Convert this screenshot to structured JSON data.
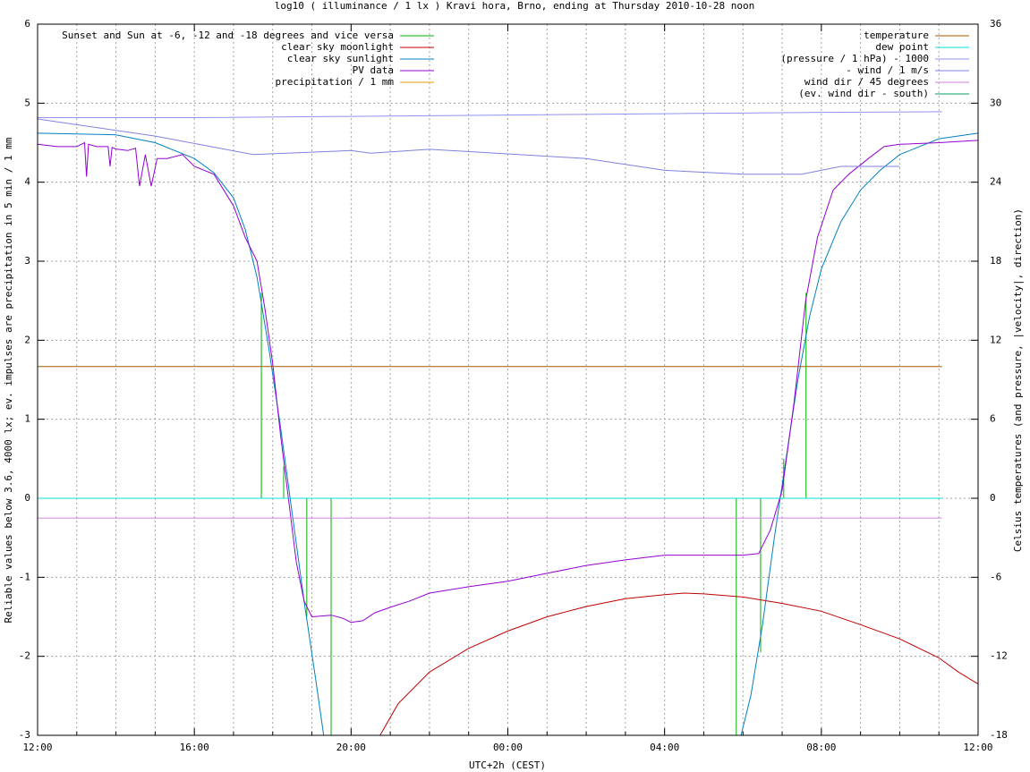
{
  "chart_data": {
    "type": "line",
    "title": "log10 ( illuminance / 1 lx ) Kravi hora, Brno, ending at Thursday 2010-10-28 noon",
    "xlabel": "UTC+2h (CEST)",
    "ylabel": "Reliable values below 3.6, 4000 lx; ev. impulses are precipitation in 5 min / 1 mm",
    "y2label": "Celsius temperatures (and pressure, |velocity|, direction)",
    "xlim": [
      0,
      24
    ],
    "xticks": [
      {
        "value": 0,
        "label": "12:00"
      },
      {
        "value": 4,
        "label": "16:00"
      },
      {
        "value": 8,
        "label": "20:00"
      },
      {
        "value": 12,
        "label": "00:00"
      },
      {
        "value": 16,
        "label": "04:00"
      },
      {
        "value": 20,
        "label": "08:00"
      },
      {
        "value": 24,
        "label": "12:00"
      }
    ],
    "xminorticks": [
      1,
      2,
      3,
      5,
      6,
      7,
      9,
      10,
      11,
      13,
      14,
      15,
      17,
      18,
      19,
      21,
      22,
      23
    ],
    "ylim": [
      -3,
      6
    ],
    "yticks": [
      -3,
      -2,
      -1,
      0,
      1,
      2,
      3,
      4,
      5,
      6
    ],
    "y2lim": [
      -18,
      36
    ],
    "y2ticks": [
      -18,
      -12,
      -6,
      0,
      6,
      12,
      18,
      24,
      30,
      36
    ],
    "grid": true,
    "legend": "top-left",
    "legend_y2": "top-right",
    "series": [
      {
        "name": "Sunset and Sun at -6, -12 and -18 degrees and vice versa",
        "color": "#00b000",
        "style": "impulses",
        "x": [
          5.71,
          6.28,
          6.87,
          7.49,
          17.83,
          18.45,
          19.04,
          19.61
        ],
        "values": [
          2.6,
          0.4,
          -1.5,
          -3,
          -3,
          -1.95,
          0.5,
          2.6
        ]
      },
      {
        "name": "clear sky moonlight",
        "color": "#c00000",
        "style": "lines",
        "x": [
          8.74,
          9.2,
          10,
          11,
          12,
          13,
          14,
          15,
          16,
          16.5,
          17,
          18,
          19,
          20,
          21,
          22,
          23,
          23.5,
          24
        ],
        "values": [
          -3,
          -2.6,
          -2.2,
          -1.9,
          -1.68,
          -1.5,
          -1.37,
          -1.27,
          -1.22,
          -1.2,
          -1.21,
          -1.25,
          -1.33,
          -1.43,
          -1.6,
          -1.78,
          -2.02,
          -2.2,
          -2.35
        ]
      },
      {
        "name": "clear sky sunlight",
        "color": "#0080c0",
        "style": "lines",
        "x": [
          0,
          2,
          3,
          4,
          4.5,
          5,
          5.3,
          5.6,
          5.9,
          6.2,
          6.5,
          6.8,
          7.1,
          7.3,
          12.5,
          17.95,
          18.2,
          18.5,
          18.8,
          19.1,
          19.4,
          19.7,
          20,
          20.5,
          21,
          21.5,
          22,
          23,
          24
        ],
        "values": [
          4.62,
          4.6,
          4.5,
          4.3,
          4.12,
          3.8,
          3.4,
          2.8,
          1.9,
          0.9,
          -0.2,
          -1.3,
          -2.3,
          -3,
          null,
          -3,
          -2.5,
          -1.6,
          -0.5,
          0.5,
          1.5,
          2.3,
          2.9,
          3.5,
          3.9,
          4.15,
          4.35,
          4.55,
          4.62
        ]
      },
      {
        "name": "PV data",
        "color": "#9400d3",
        "style": "lines",
        "x": [
          0,
          0.5,
          1,
          1.2,
          1.25,
          1.3,
          1.5,
          1.8,
          1.85,
          1.9,
          2,
          2.3,
          2.5,
          2.6,
          2.75,
          2.9,
          3.05,
          3.3,
          3.7,
          4,
          4.5,
          5,
          5.3,
          5.6,
          5.8,
          6,
          6.2,
          6.4,
          6.6,
          6.8,
          7,
          7.5,
          7.8,
          8,
          8.3,
          8.6,
          9,
          9.5,
          10,
          11,
          12,
          13,
          14,
          15,
          16,
          17,
          18,
          18.4,
          18.7,
          19,
          19.3,
          19.6,
          19.9,
          20.3,
          20.7,
          21.2,
          21.6,
          22,
          23,
          24
        ],
        "values": [
          4.48,
          4.45,
          4.45,
          4.5,
          4.07,
          4.48,
          4.45,
          4.45,
          4.2,
          4.44,
          4.42,
          4.4,
          4.43,
          3.95,
          4.35,
          3.95,
          4.3,
          4.3,
          4.35,
          4.2,
          4.1,
          3.7,
          3.3,
          3.0,
          2.4,
          1.7,
          0.8,
          0,
          -0.8,
          -1.3,
          -1.5,
          -1.48,
          -1.52,
          -1.57,
          -1.55,
          -1.45,
          -1.38,
          -1.3,
          -1.2,
          -1.12,
          -1.05,
          -0.95,
          -0.85,
          -0.78,
          -0.72,
          -0.72,
          -0.72,
          -0.7,
          -0.4,
          0.1,
          1.2,
          2.5,
          3.3,
          3.9,
          4.1,
          4.3,
          4.45,
          4.48,
          4.5,
          4.53
        ]
      },
      {
        "name": "precipitation / 1 mm",
        "color": "#e0a000",
        "style": "impulses",
        "x": [],
        "values": []
      },
      {
        "name": "temperature",
        "color": "#a05a00",
        "style": "lines",
        "axis": "y2",
        "x": [
          0,
          23.08
        ],
        "values": [
          10,
          10
        ]
      },
      {
        "name": "dew point",
        "color": "#00e0e0",
        "style": "lines",
        "axis": "y2",
        "x": [
          0,
          23.08
        ],
        "values": [
          0,
          0
        ]
      },
      {
        "name": "(pressure / 1 hPa) - 1000",
        "color": "#9090f0",
        "style": "lines",
        "axis": "y2",
        "x": [
          0,
          4,
          8,
          12,
          16,
          20,
          23.08
        ],
        "values": [
          28.9,
          28.9,
          29.0,
          29.1,
          29.2,
          29.3,
          29.35
        ]
      },
      {
        "name": "- wind / 1 m/s",
        "color": "#8080e0",
        "style": "lines",
        "axis": "y2",
        "x": [
          0,
          3,
          5.5,
          8,
          8.5,
          10,
          14,
          16,
          18,
          19.5,
          20.5,
          22
        ],
        "values": [
          28.8,
          27.5,
          26.1,
          26.4,
          26.2,
          26.5,
          25.8,
          24.9,
          24.6,
          24.6,
          25.2,
          25.2
        ]
      },
      {
        "name": "wind dir / 45 degrees",
        "color": "#d080e0",
        "style": "lines",
        "axis": "y2",
        "x": [
          0,
          23.08
        ],
        "values": [
          -1.5,
          -1.5
        ]
      },
      {
        "name": "(ev. wind dir - south)",
        "color": "#00a060",
        "style": "lines",
        "axis": "y2",
        "x": [],
        "values": []
      }
    ]
  }
}
